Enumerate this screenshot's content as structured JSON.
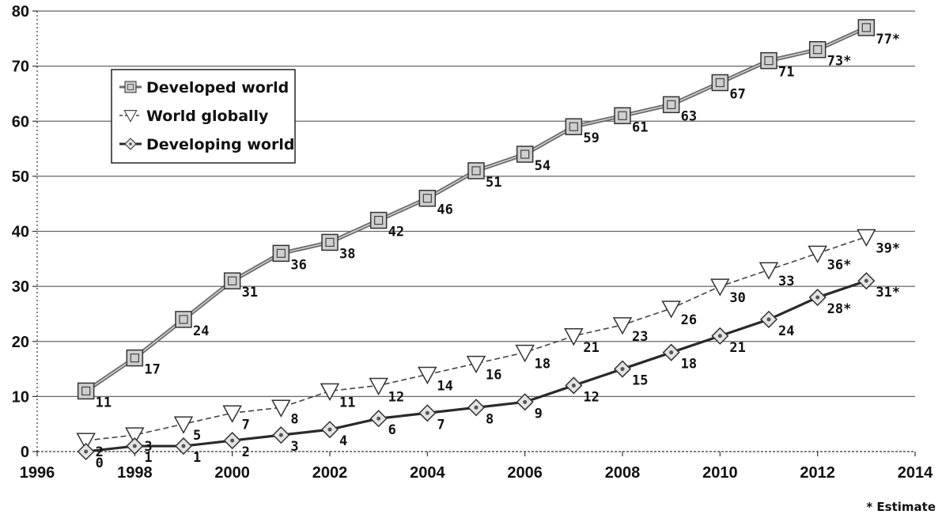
{
  "chart_data": {
    "type": "line",
    "title": "",
    "xlabel": "",
    "ylabel": "",
    "xlim": [
      1996,
      2014
    ],
    "ylim": [
      0,
      80
    ],
    "x_ticks": [
      1996,
      1998,
      2000,
      2002,
      2004,
      2006,
      2008,
      2010,
      2012,
      2014
    ],
    "y_ticks": [
      0,
      10,
      20,
      30,
      40,
      50,
      60,
      70,
      80
    ],
    "grid": "horizontal",
    "legend_position": "top-left",
    "note": "* Estimate",
    "series": [
      {
        "name": "Developed world",
        "marker": "square",
        "color": "#555555",
        "x": [
          1997,
          1998,
          1999,
          2000,
          2001,
          2002,
          2003,
          2004,
          2005,
          2006,
          2007,
          2008,
          2009,
          2010,
          2011,
          2012,
          2013
        ],
        "values": [
          11,
          17,
          24,
          31,
          36,
          38,
          42,
          46,
          51,
          54,
          59,
          61,
          63,
          67,
          71,
          73,
          77
        ],
        "labels": [
          "11",
          "17",
          "24",
          "31",
          "36",
          "38",
          "42",
          "46",
          "51",
          "54",
          "59",
          "61",
          "63",
          "67",
          "71",
          "73*",
          "77*"
        ]
      },
      {
        "name": "World globally",
        "marker": "triangle-down",
        "color": "#444444",
        "x": [
          1997,
          1998,
          1999,
          2000,
          2001,
          2002,
          2003,
          2004,
          2005,
          2006,
          2007,
          2008,
          2009,
          2010,
          2011,
          2012,
          2013
        ],
        "values": [
          2,
          3,
          5,
          7,
          8,
          11,
          12,
          14,
          16,
          18,
          21,
          23,
          26,
          30,
          33,
          36,
          39
        ],
        "labels": [
          "2",
          "3",
          "5",
          "7",
          "8",
          "11",
          "12",
          "14",
          "16",
          "18",
          "21",
          "23",
          "26",
          "30",
          "33",
          "36*",
          "39*"
        ]
      },
      {
        "name": "Developing world",
        "marker": "diamond",
        "color": "#222222",
        "x": [
          1997,
          1998,
          1999,
          2000,
          2001,
          2002,
          2003,
          2004,
          2005,
          2006,
          2007,
          2008,
          2009,
          2010,
          2011,
          2012,
          2013
        ],
        "values": [
          0,
          1,
          1,
          2,
          3,
          4,
          6,
          7,
          8,
          9,
          12,
          15,
          18,
          21,
          24,
          28,
          31
        ],
        "labels": [
          "0",
          "1",
          "1",
          "2",
          "3",
          "4",
          "6",
          "7",
          "8",
          "9",
          "12",
          "15",
          "18",
          "21",
          "24",
          "28*",
          "31*"
        ]
      }
    ]
  }
}
